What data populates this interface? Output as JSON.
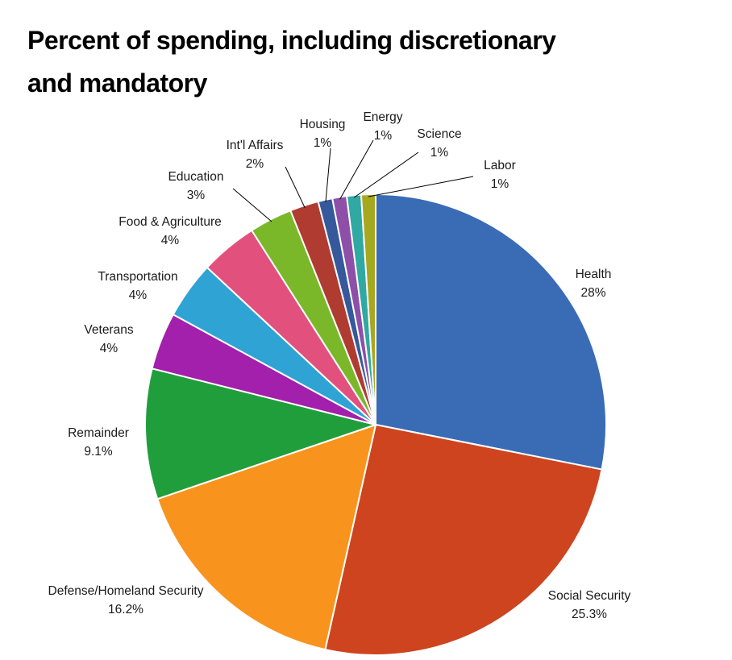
{
  "header": {
    "title_lines": [
      "Percent of spending, including discretionary",
      "and mandatory"
    ]
  },
  "chart_data": {
    "type": "pie",
    "title": "Percent of spending, including discretionary and mandatory",
    "start_angle_deg": 0,
    "direction": "clockwise",
    "legend_position": "none",
    "labels_outside_with_leader_lines": true,
    "slices": [
      {
        "label": "Health",
        "value": 28,
        "pct_label": "28%",
        "color": "#3A6BB5"
      },
      {
        "label": "Social Security",
        "value": 25.3,
        "pct_label": "25.3%",
        "color": "#CE441F"
      },
      {
        "label": "Defense/Homeland Security",
        "value": 16.2,
        "pct_label": "16.2%",
        "color": "#F8941D"
      },
      {
        "label": "Remainder",
        "value": 9.1,
        "pct_label": "9.1%",
        "color": "#219E3C"
      },
      {
        "label": "Veterans",
        "value": 4,
        "pct_label": "4%",
        "color": "#A220AB"
      },
      {
        "label": "Transportation",
        "value": 4,
        "pct_label": "4%",
        "color": "#2FA3D3"
      },
      {
        "label": "Food & Agriculture",
        "value": 4,
        "pct_label": "4%",
        "color": "#E2517D"
      },
      {
        "label": "Education",
        "value": 3,
        "pct_label": "3%",
        "color": "#7AB829"
      },
      {
        "label": "Int'l Affairs",
        "value": 2,
        "pct_label": "2%",
        "color": "#B03B31"
      },
      {
        "label": "Housing",
        "value": 1,
        "pct_label": "1%",
        "color": "#35599B"
      },
      {
        "label": "Energy",
        "value": 1,
        "pct_label": "1%",
        "color": "#8D4FA8"
      },
      {
        "label": "Science",
        "value": 1,
        "pct_label": "1%",
        "color": "#2FA9A1"
      },
      {
        "label": "Labor",
        "value": 1,
        "pct_label": "1%",
        "color": "#A6A820"
      }
    ]
  }
}
